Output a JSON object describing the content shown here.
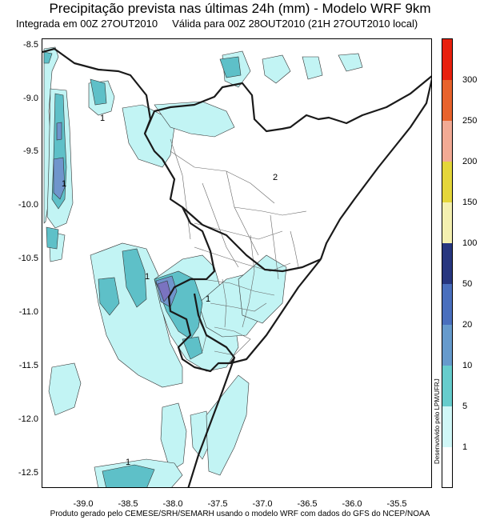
{
  "title": "Precipitação prevista nas últimas 24h (mm) - Modelo WRF 9km",
  "subtitle": {
    "integrated": "Integrada em 00Z 27OUT2010",
    "valid": "Válida para 00Z 28OUT2010  (21H 27OUT2010 local)"
  },
  "footer": "Produto gerado pelo CEMESE/SRH/SEMARH usando o modelo WRF com dados do GFS do NCEP/NOAA",
  "credit": "Desenvolvido pelo LPM/UFRJ",
  "axes": {
    "lon_ticks": [
      "-39.0",
      "-38.5",
      "-38.0",
      "-37.5",
      "-37.0",
      "-36.5",
      "-36.0",
      "-35.5"
    ],
    "lon_values": [
      -39.0,
      -38.5,
      -38.0,
      -37.5,
      -37.0,
      -36.5,
      -36.0,
      -35.5
    ],
    "lat_ticks": [
      "-8.5",
      "-9.0",
      "-9.5",
      "-10.0",
      "-10.5",
      "-11.0",
      "-11.5",
      "-12.0",
      "-12.5"
    ],
    "lat_values": [
      -8.5,
      -9.0,
      -9.5,
      -10.0,
      -10.5,
      -11.0,
      -11.5,
      -12.0,
      -12.5
    ],
    "lon_range": [
      -39.4,
      -35.17
    ],
    "lat_range": [
      -8.42,
      -12.64
    ]
  },
  "colorbar": {
    "labels": [
      "1",
      "5",
      "10",
      "20",
      "50",
      "100",
      "150",
      "200",
      "250",
      "300"
    ],
    "colors": [
      "#ffffff",
      "#d0f7f7",
      "#66cccc",
      "#669acc",
      "#4a6fbd",
      "#27367f",
      "#f4f0b0",
      "#e4d63a",
      "#f2aa94",
      "#e8632c",
      "#e8200e"
    ]
  },
  "map_colors": {
    "light": "#c2f4f4",
    "medium": "#5ec0c8",
    "dark": "#6f95cc",
    "darker": "#7a73c0",
    "border": "#1a1a1a",
    "municipal": "#666666",
    "ocean": "#ffffff"
  },
  "contour_labels": [
    "1",
    "1",
    "1",
    "1",
    "1",
    "2"
  ]
}
